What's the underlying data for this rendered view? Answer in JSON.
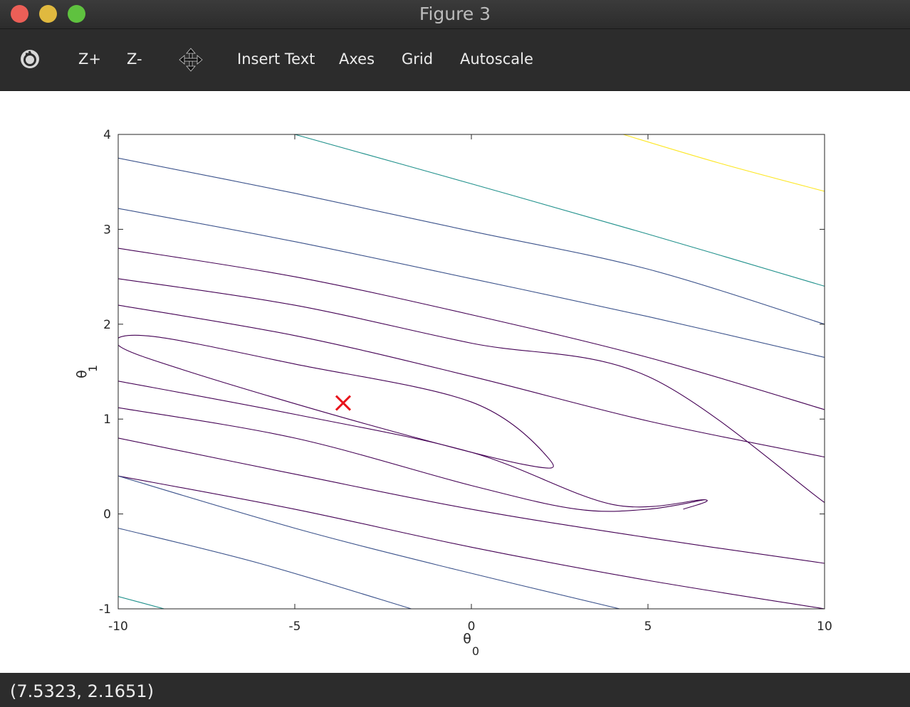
{
  "window": {
    "title": "Figure 3",
    "controls": [
      "close",
      "minimize",
      "zoom"
    ]
  },
  "toolbar": {
    "rotate_icon": "rotate-icon",
    "zoom_in_label": "Z+",
    "zoom_out_label": "Z-",
    "pan_icon": "pan-move-icon",
    "insert_text_label": "Insert Text",
    "axes_label": "Axes",
    "grid_label": "Grid",
    "autoscale_label": "Autoscale"
  },
  "status": {
    "coordinates": "(7.5323, 2.1651)"
  },
  "chart_data": {
    "type": "contour",
    "title": "",
    "xlabel": "θ",
    "xlabel_sub": "0",
    "ylabel": "θ",
    "ylabel_sub": "1",
    "xlim": [
      -10,
      10
    ],
    "ylim": [
      -1,
      4
    ],
    "xticks": [
      -10,
      -5,
      0,
      5,
      10
    ],
    "yticks": [
      -1,
      0,
      1,
      2,
      3,
      4
    ],
    "xtick_labels": [
      "-10",
      "-5",
      "0",
      "5",
      "10"
    ],
    "ytick_labels": [
      "-1",
      "0",
      "1",
      "2",
      "3",
      "4"
    ],
    "grid": false,
    "levels": [
      {
        "color": "#440154",
        "closed": true,
        "points": [
          [
            -10,
            1.8
          ],
          [
            -9,
            1.87
          ],
          [
            -5,
            1.58
          ],
          [
            0,
            1.18
          ],
          [
            2.2,
            0.58
          ],
          [
            1.5,
            0.52
          ],
          [
            -3,
            0.95
          ],
          [
            -8,
            1.5
          ],
          [
            -10,
            1.78
          ]
        ]
      },
      {
        "color": "#440154",
        "closed": false,
        "points": [
          [
            -10,
            2.2
          ],
          [
            -5,
            1.88
          ],
          [
            0,
            1.45
          ],
          [
            5,
            0.98
          ],
          [
            10,
            0.6
          ]
        ]
      },
      {
        "color": "#440154",
        "closed": false,
        "points": [
          [
            -10,
            1.4
          ],
          [
            -5,
            1.05
          ],
          [
            0,
            0.65
          ],
          [
            4,
            0.1
          ],
          [
            6.6,
            0.15
          ],
          [
            6,
            0.05
          ]
        ]
      },
      {
        "color": "#440154",
        "closed": false,
        "points": [
          [
            6.6,
            0.15
          ],
          [
            5,
            0.05
          ],
          [
            3,
            0.05
          ],
          [
            0,
            0.3
          ],
          [
            -5,
            0.8
          ],
          [
            -10,
            1.12
          ]
        ]
      },
      {
        "color": "#440154",
        "closed": false,
        "points": [
          [
            -10,
            2.48
          ],
          [
            -5,
            2.2
          ],
          [
            0,
            1.8
          ],
          [
            5,
            1.45
          ],
          [
            10,
            0.12
          ]
        ]
      },
      {
        "color": "#440154",
        "closed": false,
        "points": [
          [
            -10,
            0.8
          ],
          [
            -5,
            0.42
          ],
          [
            0,
            0.05
          ],
          [
            5,
            -0.25
          ],
          [
            10,
            -0.52
          ]
        ]
      },
      {
        "color": "#440154",
        "closed": false,
        "points": [
          [
            -10,
            2.8
          ],
          [
            -5,
            2.5
          ],
          [
            0,
            2.1
          ],
          [
            5,
            1.65
          ],
          [
            10,
            1.1
          ]
        ]
      },
      {
        "color": "#440154",
        "closed": false,
        "points": [
          [
            -10,
            0.4
          ],
          [
            -5,
            0.05
          ],
          [
            0,
            -0.35
          ],
          [
            5,
            -0.7
          ],
          [
            10,
            -1.0
          ]
        ]
      },
      {
        "color": "#3b528b",
        "closed": false,
        "points": [
          [
            -10,
            3.22
          ],
          [
            -5,
            2.87
          ],
          [
            0,
            2.48
          ],
          [
            5,
            2.08
          ],
          [
            10,
            1.65
          ]
        ]
      },
      {
        "color": "#3b528b",
        "closed": false,
        "points": [
          [
            -10,
            -0.15
          ],
          [
            -6,
            -0.52
          ],
          [
            -1.7,
            -1.0
          ]
        ]
      },
      {
        "color": "#3b528b",
        "closed": false,
        "points": [
          [
            -10,
            3.75
          ],
          [
            -5,
            3.38
          ],
          [
            0,
            2.98
          ],
          [
            5,
            2.58
          ],
          [
            10,
            2.0
          ]
        ]
      },
      {
        "color": "#3b528b",
        "closed": false,
        "points": [
          [
            4.2,
            -1.0
          ],
          [
            -0.5,
            -0.58
          ],
          [
            -5,
            -0.15
          ],
          [
            -10,
            0.4
          ]
        ]
      },
      {
        "color": "#21918c",
        "closed": false,
        "points": [
          [
            -5,
            4.0
          ],
          [
            0,
            3.48
          ],
          [
            5,
            2.95
          ],
          [
            10,
            2.4
          ]
        ]
      },
      {
        "color": "#21918c",
        "closed": false,
        "points": [
          [
            -10,
            -0.87
          ],
          [
            -8.7,
            -1.0
          ]
        ]
      },
      {
        "color": "#fde725",
        "closed": false,
        "points": [
          [
            4.3,
            4.0
          ],
          [
            7,
            3.7
          ],
          [
            10,
            3.4
          ]
        ]
      }
    ],
    "markers": [
      {
        "x": -3.63,
        "y": 1.17,
        "symbol": "x",
        "color": "#e8141c"
      }
    ]
  }
}
